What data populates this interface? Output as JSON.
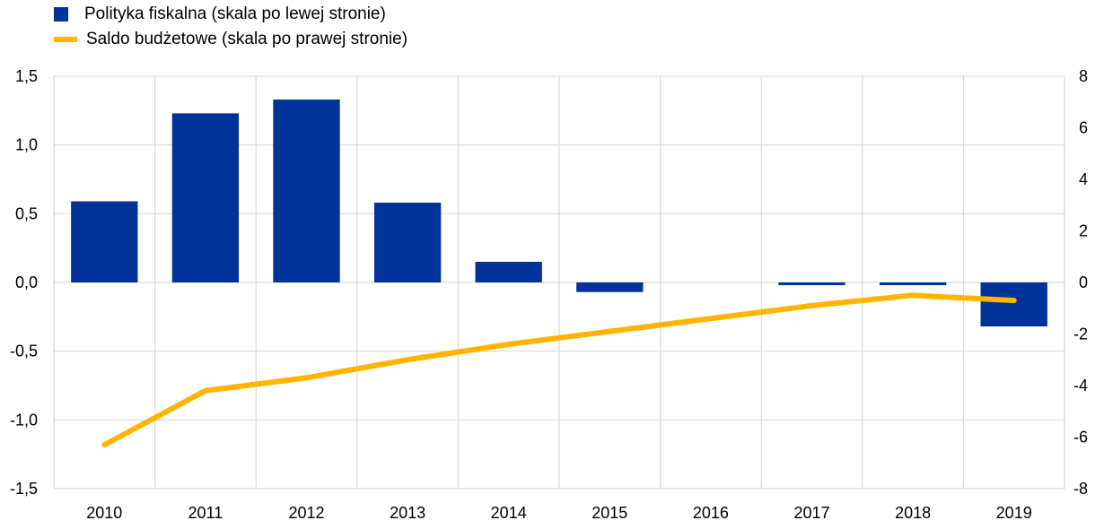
{
  "legend": {
    "bar_label": "Polityka fiskalna (skala po lewej stronie)",
    "line_label": "Saldo budżetowe (skala po prawej stronie)"
  },
  "colors": {
    "bar": "#003299",
    "line": "#FFB400",
    "grid": "#d9d9d9"
  },
  "chart_data": {
    "type": "bar",
    "categories": [
      "2010",
      "2011",
      "2012",
      "2013",
      "2014",
      "2015",
      "2016",
      "2017",
      "2018",
      "2019"
    ],
    "series": [
      {
        "name": "Polityka fiskalna (skala po lewej stronie)",
        "type": "bar",
        "axis": "left",
        "values": [
          0.59,
          1.23,
          1.33,
          0.58,
          0.15,
          -0.07,
          0.0,
          -0.02,
          -0.02,
          -0.32
        ]
      },
      {
        "name": "Saldo budżetowe (skala po prawej stronie)",
        "type": "line",
        "axis": "right",
        "values": [
          -6.3,
          -4.2,
          -3.7,
          -3.0,
          -2.4,
          -1.9,
          -1.4,
          -0.9,
          -0.5,
          -0.7
        ]
      }
    ],
    "left_axis": {
      "ylim": [
        -1.5,
        1.5
      ],
      "ticks": [
        "1,5",
        "1,0",
        "0,5",
        "0,0",
        "-0,5",
        "-1,0",
        "-1,5"
      ]
    },
    "right_axis": {
      "ylim": [
        -8,
        8
      ],
      "ticks": [
        "8",
        "6",
        "4",
        "2",
        "0",
        "-2",
        "-4",
        "-6",
        "-8"
      ]
    },
    "grid": true,
    "legend_position": "top-left"
  }
}
